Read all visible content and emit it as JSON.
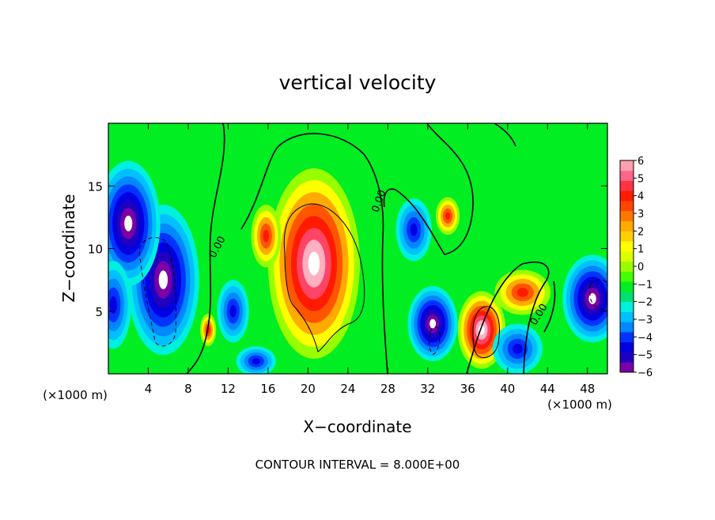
{
  "chart_data": {
    "type": "heatmap",
    "title": "vertical velocity",
    "xlabel": "X−coordinate",
    "ylabel": "Z−coordinate",
    "x_unit": "(×1000 m)",
    "y_unit": "(×1000 m)",
    "xlim": [
      0,
      50
    ],
    "ylim": [
      0,
      20
    ],
    "x_ticks": [
      4,
      8,
      12,
      16,
      20,
      24,
      28,
      32,
      36,
      40,
      44,
      48
    ],
    "y_ticks": [
      5,
      10,
      15
    ],
    "footer": "CONTOUR INTERVAL = 8.000E+00",
    "colorbar": {
      "labels": [
        "6",
        "5",
        "4",
        "3",
        "2",
        "1",
        "0",
        "−1",
        "−2",
        "−3",
        "−4",
        "−5",
        "−6"
      ],
      "min": -6,
      "max": 6,
      "colors": [
        "#7a00a8",
        "#1f00c0",
        "#0000e0",
        "#0033ff",
        "#0088ff",
        "#00c0ff",
        "#00f0e0",
        "#00e070",
        "#00ee22",
        "#44ff00",
        "#99ff00",
        "#ddff00",
        "#ffff00",
        "#ffd000",
        "#ffaa00",
        "#ff7700",
        "#ff4400",
        "#ff1a00",
        "#ff3344",
        "#ff6688",
        "#ffa0b0"
      ]
    },
    "contour_labels": [
      {
        "text": "0.00",
        "x": 11.2,
        "z": 10.0,
        "angle": -62
      },
      {
        "text": "0.00",
        "x": 27.4,
        "z": 13.7,
        "angle": -70
      },
      {
        "text": "0.00",
        "x": 43.4,
        "z": 4.6,
        "angle": -58
      }
    ],
    "features": [
      {
        "kind": "updraft",
        "x": 20.6,
        "z": 8.8,
        "rx": 4.6,
        "rz": 7.6
      },
      {
        "kind": "updraft",
        "x": 37.4,
        "z": 3.5,
        "rx": 2.4,
        "rz": 3.1
      },
      {
        "kind": "updraft",
        "x": 15.8,
        "z": 11.0,
        "rx": 1.5,
        "rz": 2.5
      },
      {
        "kind": "updraft",
        "x": 34.0,
        "z": 12.6,
        "rx": 1.2,
        "rz": 1.5
      },
      {
        "kind": "updraft",
        "x": 10.0,
        "z": 3.5,
        "rx": 0.8,
        "rz": 1.3
      },
      {
        "kind": "updraft",
        "x": 41.5,
        "z": 6.5,
        "rx": 2.8,
        "rz": 1.8
      },
      {
        "kind": "downdraft",
        "x": 5.5,
        "z": 7.5,
        "rx": 3.6,
        "rz": 6.0
      },
      {
        "kind": "downdraft",
        "x": 2.0,
        "z": 12.0,
        "rx": 3.2,
        "rz": 5.0
      },
      {
        "kind": "downdraft",
        "x": 0.5,
        "z": 5.5,
        "rx": 1.8,
        "rz": 3.5
      },
      {
        "kind": "downdraft",
        "x": 32.5,
        "z": 4.0,
        "rx": 2.5,
        "rz": 3.0
      },
      {
        "kind": "downdraft",
        "x": 48.5,
        "z": 6.0,
        "rx": 3.0,
        "rz": 3.5
      },
      {
        "kind": "downdraft",
        "x": 12.5,
        "z": 5.0,
        "rx": 1.6,
        "rz": 2.5
      },
      {
        "kind": "downdraft",
        "x": 30.6,
        "z": 11.5,
        "rx": 1.8,
        "rz": 2.5
      },
      {
        "kind": "downdraft",
        "x": 14.8,
        "z": 1.0,
        "rx": 2.0,
        "rz": 1.2
      },
      {
        "kind": "downdraft",
        "x": 41.0,
        "z": 2.0,
        "rx": 2.5,
        "rz": 2.0
      }
    ]
  }
}
